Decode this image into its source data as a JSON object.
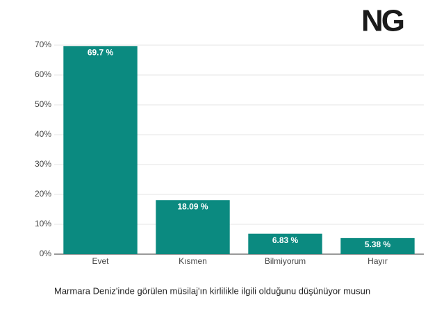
{
  "logo": "NG",
  "chart_data": {
    "type": "bar",
    "title": "Marmara Deniz'inde görülen müsilaj'ın kirlilikle ilgili olduğunu düşünüyor musun",
    "categories": [
      "Evet",
      "Kısmen",
      "Bilmiyorum",
      "Hayır"
    ],
    "values": [
      69.7,
      18.09,
      6.83,
      5.38
    ],
    "value_labels": [
      "69.7 %",
      "18.09 %",
      "6.83 %",
      "5.38 %"
    ],
    "color": "#0b8a80",
    "ylim": [
      0,
      70
    ],
    "yticks": [
      {
        "value": 0,
        "label": "0%"
      },
      {
        "value": 10,
        "label": "10%"
      },
      {
        "value": 20,
        "label": "20%"
      },
      {
        "value": 30,
        "label": "30%"
      },
      {
        "value": 40,
        "label": "40%"
      },
      {
        "value": 50,
        "label": "50%"
      },
      {
        "value": 60,
        "label": "60%"
      },
      {
        "value": 70,
        "label": "70%"
      }
    ],
    "grid": true
  }
}
